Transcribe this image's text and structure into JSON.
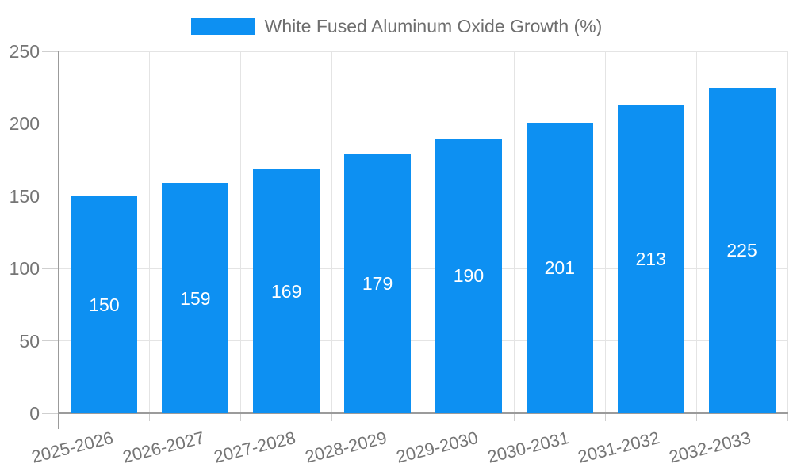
{
  "chart_data": {
    "type": "bar",
    "categories": [
      "2025-2026",
      "2026-2027",
      "2027-2028",
      "2028-2029",
      "2029-2030",
      "2030-2031",
      "2031-2032",
      "2032-2033"
    ],
    "series": [
      {
        "name": "White Fused Aluminum Oxide Growth (%)",
        "values": [
          150,
          159,
          169,
          179,
          190,
          201,
          213,
          225
        ]
      }
    ],
    "ylim": [
      0,
      250
    ],
    "yticks": [
      0,
      50,
      100,
      150,
      200,
      250
    ],
    "grid": true,
    "legend_position": "top",
    "bar_labels_inside": true,
    "x_label_rotation_deg": -14
  },
  "colors": {
    "bar": "#0d90f2",
    "grid": "#e4e4e4",
    "tick": "#cfcfcf",
    "axis": "#9b9b9b",
    "text": "#757575",
    "bar_label": "#ffffff",
    "background": "#ffffff"
  }
}
